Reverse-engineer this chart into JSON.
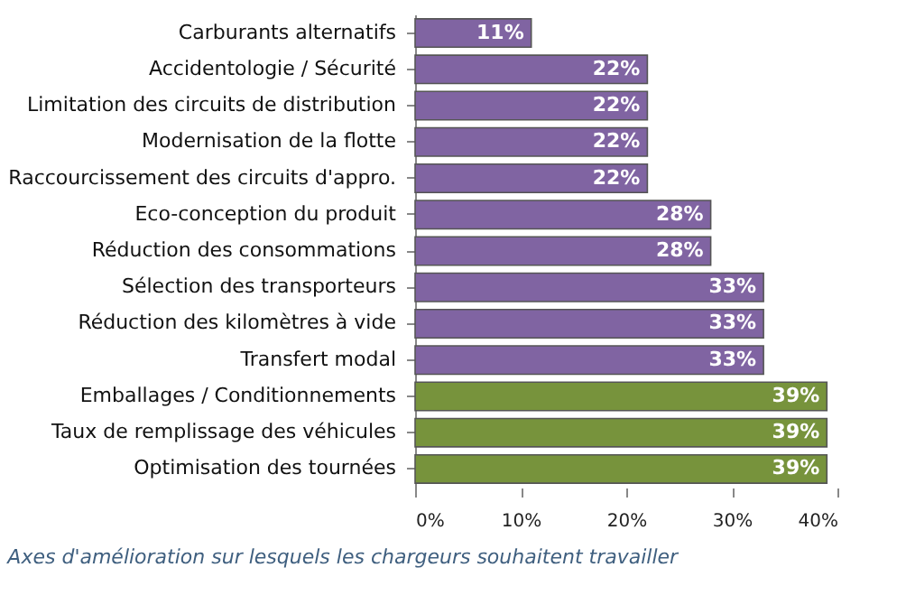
{
  "chart_data": {
    "type": "bar",
    "orientation": "horizontal",
    "categories": [
      "Carburants alternatifs",
      "Accidentologie / Sécurité",
      "Limitation des circuits de distribution",
      "Modernisation de la flotte",
      "Raccourcissement des circuits d'appro.",
      "Eco-conception du produit",
      "Réduction des consommations",
      "Sélection des transporteurs",
      "Réduction des kilomètres à vide",
      "Transfert modal",
      "Emballages / Conditionnements",
      "Taux de remplissage des véhicules",
      "Optimisation des tournées"
    ],
    "values": [
      11,
      22,
      22,
      22,
      22,
      28,
      28,
      33,
      33,
      33,
      39,
      39,
      39
    ],
    "colors": [
      "#8064a2",
      "#8064a2",
      "#8064a2",
      "#8064a2",
      "#8064a2",
      "#8064a2",
      "#8064a2",
      "#8064a2",
      "#8064a2",
      "#8064a2",
      "#77933c",
      "#77933c",
      "#77933c"
    ],
    "value_labels": [
      "11%",
      "22%",
      "22%",
      "22%",
      "22%",
      "28%",
      "28%",
      "33%",
      "33%",
      "33%",
      "39%",
      "39%",
      "39%"
    ],
    "xlim": [
      0,
      40
    ],
    "xticks": [
      {
        "value": 0,
        "label": "0%"
      },
      {
        "value": 10,
        "label": "10%"
      },
      {
        "value": 20,
        "label": "20%"
      },
      {
        "value": 30,
        "label": "30%"
      },
      {
        "value": 40,
        "label": "40%"
      }
    ],
    "grid": false,
    "annotations": [
      "Axes d'amélioration sur lesquels les chargeurs souhaitent travailler"
    ]
  }
}
